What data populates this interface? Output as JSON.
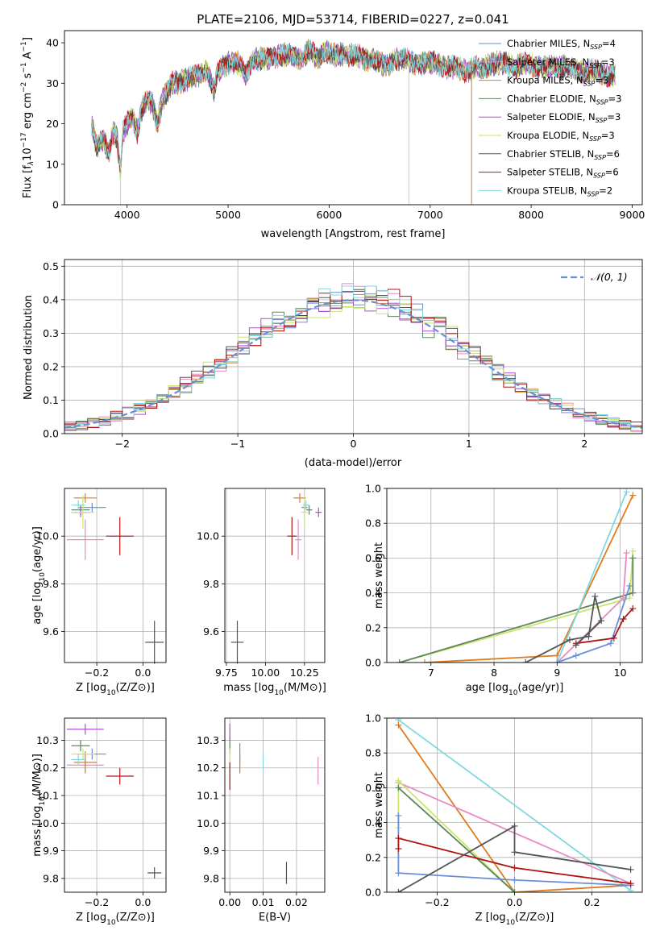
{
  "title": "PLATE=2106, MJD=53714, FIBERID=0227, z=0.041",
  "colors": {
    "Chabrier MILES": "#6b8ed8",
    "Salpeter MILES": "#e78ac3",
    "Kroupa MILES": "#e07b1f",
    "Chabrier ELODIE": "#5c8660",
    "Salpeter ELODIE": "#b04fd1",
    "Kroupa ELODIE": "#cbe56a",
    "Chabrier STELIB": "#555555",
    "Salpeter STELIB": "#b01515",
    "Kroupa STELIB": "#7fd8dd"
  },
  "chart_data": [
    {
      "type": "line",
      "title": "PLATE=2106, MJD=53714, FIBERID=0227, z=0.041",
      "xlabel": "wavelength [Angstrom, rest frame]",
      "ylabel": "Flux [f_λ10^-17 erg cm^-2 s^-1 A^-1]",
      "xlim": [
        3380,
        9100
      ],
      "ylim": [
        0,
        43
      ],
      "xticks": [
        4000,
        5000,
        6000,
        7000,
        8000,
        9000
      ],
      "yticks": [
        0,
        10,
        20,
        30,
        40
      ],
      "legend_position": "top-right",
      "spectrum": {
        "x": [
          3650,
          3700,
          3760,
          3820,
          3860,
          3900,
          3935,
          3960,
          4000,
          4050,
          4100,
          4150,
          4200,
          4250,
          4300,
          4350,
          4400,
          4450,
          4500,
          4600,
          4700,
          4800,
          4861,
          4900,
          5000,
          5100,
          5175,
          5250,
          5300,
          5400,
          5500,
          5600,
          5700,
          5800,
          5893,
          5950,
          6050,
          6150,
          6250,
          6350,
          6450,
          6563,
          6650,
          6750,
          6850,
          6950,
          7050,
          7150,
          7250,
          7350,
          7450,
          7550,
          7650,
          7750,
          7850,
          7950,
          8050,
          8150,
          8250,
          8350,
          8450,
          8550,
          8650,
          8750,
          8830
        ],
        "y": [
          20,
          14,
          16,
          13,
          18,
          17,
          8,
          18,
          20,
          22,
          18,
          24,
          26,
          25,
          20,
          26,
          28,
          30,
          30,
          31,
          32,
          33,
          28,
          33,
          35,
          35,
          32,
          36,
          36,
          36,
          37,
          37,
          36,
          38,
          36,
          38,
          37,
          37,
          37,
          36,
          36,
          34,
          36,
          36,
          35,
          35,
          35,
          34,
          34,
          33,
          34,
          34,
          35,
          35,
          34,
          35,
          34,
          34,
          34,
          34,
          33,
          33,
          33,
          32,
          32
        ]
      },
      "dropouts": [
        {
          "series": "Kroupa ELODIE",
          "x": 3935
        },
        {
          "series": "Kroupa ELODIE",
          "x": 6790
        },
        {
          "series": "Kroupa MILES",
          "x": 7410
        }
      ],
      "legend": [
        {
          "name": "Chabrier MILES",
          "label": "Chabrier MILES, N",
          "sub": "SSP",
          "suffix": "=4"
        },
        {
          "name": "Salpeter MILES",
          "label": "Salpeter MILES, N",
          "sub": "SSP",
          "suffix": "=3"
        },
        {
          "name": "Kroupa MILES",
          "label": "Kroupa MILES, N",
          "sub": "SSP",
          "suffix": "=3"
        },
        {
          "name": "Chabrier ELODIE",
          "label": "Chabrier ELODIE, N",
          "sub": "SSP",
          "suffix": "=3"
        },
        {
          "name": "Salpeter ELODIE",
          "label": "Salpeter ELODIE, N",
          "sub": "SSP",
          "suffix": "=3"
        },
        {
          "name": "Kroupa ELODIE",
          "label": "Kroupa ELODIE, N",
          "sub": "SSP",
          "suffix": "=3"
        },
        {
          "name": "Chabrier STELIB",
          "label": "Chabrier STELIB, N",
          "sub": "SSP",
          "suffix": "=6"
        },
        {
          "name": "Salpeter STELIB",
          "label": "Salpeter STELIB, N",
          "sub": "SSP",
          "suffix": "=6"
        },
        {
          "name": "Kroupa STELIB",
          "label": "Kroupa STELIB, N",
          "sub": "SSP",
          "suffix": "=2"
        }
      ]
    },
    {
      "type": "histogram",
      "xlabel": "(data-model)/error",
      "ylabel": "Normed distribution",
      "xlim": [
        -2.5,
        2.5
      ],
      "ylim": [
        0,
        0.52
      ],
      "xticks": [
        -2,
        -1,
        0,
        1,
        2
      ],
      "yticks": [
        0.0,
        0.1,
        0.2,
        0.3,
        0.4,
        0.5
      ],
      "bin_width": 0.1,
      "gaussian_label": "𝒩(0, 1)",
      "gaussian_color": "#6b8ed8",
      "grid": true
    },
    {
      "type": "scatter",
      "xlabel": "Z [log10(Z/Z⊙)]",
      "ylabel": "age  [log10(age/yr)]",
      "xlim": [
        -0.34,
        0.1
      ],
      "ylim": [
        9.47,
        10.2
      ],
      "xticks": [
        -0.2,
        0.0
      ],
      "yticks": [
        9.6,
        9.8,
        10.0
      ],
      "points": [
        {
          "series": "Chabrier MILES",
          "x": -0.22,
          "y": 10.12,
          "xerr": 0.06,
          "yerr": 0.02
        },
        {
          "series": "Salpeter MILES",
          "x": -0.25,
          "y": 9.985,
          "xerr": 0.08,
          "yerr": 0.085
        },
        {
          "series": "Kroupa MILES",
          "x": -0.25,
          "y": 10.16,
          "xerr": 0.05,
          "yerr": 0.02
        },
        {
          "series": "Chabrier ELODIE",
          "x": -0.27,
          "y": 10.11,
          "xerr": 0.04,
          "yerr": 0.02
        },
        {
          "series": "Salpeter ELODIE",
          "x": -0.27,
          "y": 10.1,
          "xerr": 0.04,
          "yerr": 0.02
        },
        {
          "series": "Kroupa ELODIE",
          "x": -0.26,
          "y": 10.1,
          "xerr": 0.05,
          "yerr": 0.07
        },
        {
          "series": "Chabrier STELIB",
          "x": 0.05,
          "y": 9.555,
          "xerr": 0.04,
          "yerr": 0.09
        },
        {
          "series": "Salpeter STELIB",
          "x": -0.1,
          "y": 10.0,
          "xerr": 0.06,
          "yerr": 0.08
        },
        {
          "series": "Kroupa STELIB",
          "x": -0.28,
          "y": 10.13,
          "xerr": 0.03,
          "yerr": 0.02
        }
      ]
    },
    {
      "type": "scatter",
      "xlabel": "mass [log10(M/M⊙)]",
      "ylabel": "",
      "xlim": [
        9.74,
        10.38
      ],
      "ylim": [
        9.47,
        10.2
      ],
      "xticks": [
        9.75,
        10.0,
        10.25
      ],
      "yticks": [
        9.6,
        9.8,
        10.0
      ],
      "points": [
        {
          "series": "Chabrier MILES",
          "x": 10.25,
          "y": 10.12,
          "xerr": 0.02,
          "yerr": 0.02
        },
        {
          "series": "Salpeter MILES",
          "x": 10.21,
          "y": 9.985,
          "xerr": 0.02,
          "yerr": 0.085
        },
        {
          "series": "Kroupa MILES",
          "x": 10.22,
          "y": 10.16,
          "xerr": 0.04,
          "yerr": 0.02
        },
        {
          "series": "Chabrier ELODIE",
          "x": 10.28,
          "y": 10.11,
          "xerr": 0.02,
          "yerr": 0.02
        },
        {
          "series": "Salpeter ELODIE",
          "x": 10.34,
          "y": 10.1,
          "xerr": 0.02,
          "yerr": 0.02
        },
        {
          "series": "Kroupa ELODIE",
          "x": 10.25,
          "y": 10.1,
          "xerr": 0.02,
          "yerr": 0.07
        },
        {
          "series": "Chabrier STELIB",
          "x": 9.82,
          "y": 9.555,
          "xerr": 0.04,
          "yerr": 0.09
        },
        {
          "series": "Salpeter STELIB",
          "x": 10.17,
          "y": 10.0,
          "xerr": 0.03,
          "yerr": 0.08
        },
        {
          "series": "Kroupa STELIB",
          "x": 10.26,
          "y": 10.13,
          "xerr": 0.02,
          "yerr": 0.02
        }
      ]
    },
    {
      "type": "line",
      "xlabel": "age  [log10(age/yr)]",
      "ylabel": "mass weight",
      "xlim": [
        6.3,
        10.35
      ],
      "ylim": [
        0,
        1.0
      ],
      "xticks": [
        7,
        8,
        9,
        10
      ],
      "yticks": [
        0.0,
        0.2,
        0.4,
        0.6,
        0.8,
        1.0
      ],
      "series": [
        {
          "name": "Kroupa ELODIE",
          "x": [
            6.5,
            10.15,
            10.2
          ],
          "y": [
            0.0,
            0.37,
            0.64
          ]
        },
        {
          "name": "Chabrier ELODIE",
          "x": [
            6.5,
            10.2,
            10.2
          ],
          "y": [
            0.0,
            0.4,
            0.6
          ]
        },
        {
          "name": "Kroupa MILES",
          "x": [
            6.9,
            9.0,
            10.2
          ],
          "y": [
            0.0,
            0.04,
            0.96
          ]
        },
        {
          "name": "Salpeter MILES",
          "x": [
            9.0,
            10.05,
            10.1
          ],
          "y": [
            0.0,
            0.37,
            0.63
          ]
        },
        {
          "name": "Kroupa STELIB",
          "x": [
            9.0,
            10.1
          ],
          "y": [
            0.0,
            0.98
          ]
        },
        {
          "name": "Chabrier MILES",
          "x": [
            9.0,
            9.3,
            9.85,
            10.15
          ],
          "y": [
            0.0,
            0.04,
            0.11,
            0.44
          ]
        },
        {
          "name": "Salpeter STELIB",
          "x": [
            9.3,
            9.9,
            10.05,
            10.2
          ],
          "y": [
            0.11,
            0.14,
            0.25,
            0.31
          ]
        },
        {
          "name": "Chabrier STELIB",
          "x": [
            8.5,
            9.2,
            9.5,
            9.6,
            9.7,
            9.3
          ],
          "y": [
            0.0,
            0.13,
            0.15,
            0.38,
            0.24,
            0.1
          ]
        }
      ]
    },
    {
      "type": "scatter",
      "xlabel": "Z [log10(Z/Z⊙)]",
      "ylabel": "mass [log10(M/M⊙)]",
      "xlim": [
        -0.34,
        0.1
      ],
      "ylim": [
        9.75,
        10.38
      ],
      "xticks": [
        -0.2,
        0.0
      ],
      "yticks": [
        9.8,
        9.9,
        10.0,
        10.1,
        10.2,
        10.3
      ],
      "points": [
        {
          "series": "Chabrier MILES",
          "x": -0.22,
          "y": 10.25,
          "xerr": 0.06,
          "yerr": 0.02
        },
        {
          "series": "Salpeter MILES",
          "x": -0.25,
          "y": 10.21,
          "xerr": 0.08,
          "yerr": 0.02
        },
        {
          "series": "Kroupa MILES",
          "x": -0.25,
          "y": 10.22,
          "xerr": 0.05,
          "yerr": 0.04
        },
        {
          "series": "Chabrier ELODIE",
          "x": -0.27,
          "y": 10.28,
          "xerr": 0.04,
          "yerr": 0.02
        },
        {
          "series": "Salpeter ELODIE",
          "x": -0.25,
          "y": 10.34,
          "xerr": 0.08,
          "yerr": 0.02
        },
        {
          "series": "Kroupa ELODIE",
          "x": -0.26,
          "y": 10.25,
          "xerr": 0.05,
          "yerr": 0.02
        },
        {
          "series": "Chabrier STELIB",
          "x": 0.05,
          "y": 9.82,
          "xerr": 0.03,
          "yerr": 0.02
        },
        {
          "series": "Salpeter STELIB",
          "x": -0.1,
          "y": 10.17,
          "xerr": 0.06,
          "yerr": 0.03
        },
        {
          "series": "Kroupa STELIB",
          "x": -0.28,
          "y": 10.23,
          "xerr": 0.03,
          "yerr": 0.02
        }
      ]
    },
    {
      "type": "scatter",
      "xlabel": "E(B-V)",
      "ylabel": "",
      "xlim": [
        -0.0015,
        0.0285
      ],
      "ylim": [
        9.75,
        10.38
      ],
      "xticks": [
        0.0,
        0.01,
        0.02
      ],
      "yticks": [
        9.8,
        9.9,
        10.0,
        10.1,
        10.2,
        10.3
      ],
      "points": [
        {
          "series": "Chabrier MILES",
          "x": 0.003,
          "y": 10.25,
          "yerr": 0.04
        },
        {
          "series": "Salpeter MILES",
          "x": 0.0265,
          "y": 10.19,
          "yerr": 0.05
        },
        {
          "series": "Kroupa MILES",
          "x": 0.003,
          "y": 10.22,
          "yerr": 0.04
        },
        {
          "series": "Chabrier ELODIE",
          "x": 0.0,
          "y": 10.28,
          "yerr": 0.03
        },
        {
          "series": "Salpeter ELODIE",
          "x": 0.0,
          "y": 10.33,
          "yerr": 0.03
        },
        {
          "series": "Kroupa ELODIE",
          "x": 0.0,
          "y": 10.24,
          "yerr": 0.03
        },
        {
          "series": "Chabrier STELIB",
          "x": 0.017,
          "y": 9.82,
          "yerr": 0.04
        },
        {
          "series": "Salpeter STELIB",
          "x": 0.0,
          "y": 10.17,
          "yerr": 0.05
        },
        {
          "series": "Kroupa STELIB",
          "x": 0.01,
          "y": 10.22,
          "yerr": 0.03
        }
      ]
    },
    {
      "type": "line",
      "xlabel": "Z [log10(Z/Z⊙)]",
      "ylabel": "mass weight",
      "xlim": [
        -0.33,
        0.33
      ],
      "ylim": [
        0,
        1.0
      ],
      "xticks": [
        -0.2,
        0.0,
        0.2
      ],
      "yticks": [
        0.0,
        0.2,
        0.4,
        0.6,
        0.8,
        1.0
      ],
      "series": [
        {
          "name": "Kroupa STELIB",
          "x": [
            -0.3,
            0.3
          ],
          "y": [
            0.99,
            0.01
          ]
        },
        {
          "name": "Kroupa MILES",
          "x": [
            -0.3,
            0.0,
            0.3
          ],
          "y": [
            0.96,
            0.0,
            0.04
          ]
        },
        {
          "name": "Salpeter MILES",
          "x": [
            -0.3,
            0.3
          ],
          "y": [
            0.63,
            0.05
          ]
        },
        {
          "name": "Kroupa ELODIE",
          "x": [
            -0.3,
            -0.3,
            0.0
          ],
          "y": [
            0.37,
            0.64,
            0.0
          ]
        },
        {
          "name": "Chabrier ELODIE",
          "x": [
            -0.3,
            0.0
          ],
          "y": [
            0.6,
            0.0
          ]
        },
        {
          "name": "Chabrier MILES",
          "x": [
            -0.3,
            -0.3,
            0.0,
            0.3
          ],
          "y": [
            0.44,
            0.11,
            0.07,
            0.04
          ]
        },
        {
          "name": "Salpeter STELIB",
          "x": [
            -0.3,
            -0.3,
            0.0,
            0.3
          ],
          "y": [
            0.25,
            0.31,
            0.14,
            0.05
          ]
        },
        {
          "name": "Chabrier STELIB",
          "x": [
            -0.3,
            0.0,
            0.0,
            0.3
          ],
          "y": [
            0.0,
            0.38,
            0.23,
            0.13
          ]
        }
      ]
    }
  ]
}
